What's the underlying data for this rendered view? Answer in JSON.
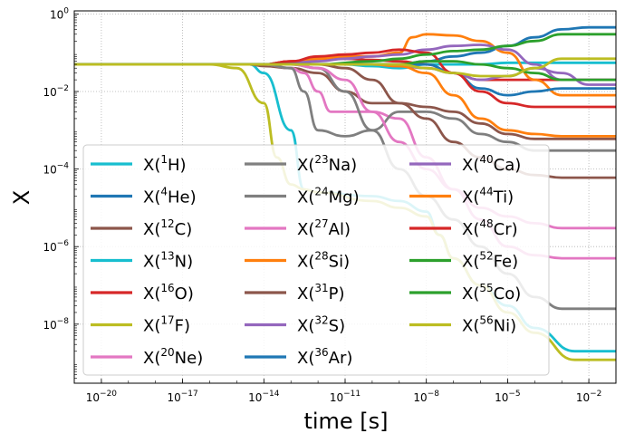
{
  "chart_data": {
    "type": "line",
    "title": "",
    "xlabel": "time [s]",
    "ylabel": "X",
    "xscale": "log",
    "yscale": "log",
    "xlim": [
      1e-21,
      0.1
    ],
    "ylim": [
      3e-10,
      1.2
    ],
    "grid": true,
    "legend_location": "lower-left",
    "legend_columns": 3,
    "xticks": [
      {
        "value": 1e-20,
        "base": "10",
        "exp": "−20"
      },
      {
        "value": 1e-17,
        "base": "10",
        "exp": "−17"
      },
      {
        "value": 1e-14,
        "base": "10",
        "exp": "−14"
      },
      {
        "value": 1e-11,
        "base": "10",
        "exp": "−11"
      },
      {
        "value": 1e-08,
        "base": "10",
        "exp": "−8"
      },
      {
        "value": 1e-05,
        "base": "10",
        "exp": "−5"
      },
      {
        "value": 0.01,
        "base": "10",
        "exp": "−2"
      }
    ],
    "yticks": [
      {
        "value": 1.0,
        "base": "10",
        "exp": "0"
      },
      {
        "value": 0.01,
        "base": "10",
        "exp": "−2"
      },
      {
        "value": 0.0001,
        "base": "10",
        "exp": "−4"
      },
      {
        "value": 1e-06,
        "base": "10",
        "exp": "−6"
      },
      {
        "value": 1e-08,
        "base": "10",
        "exp": "−8"
      }
    ],
    "series": [
      {
        "name": "X(1H)",
        "label_pre": "X(",
        "mass": "1",
        "elem": "H",
        "color": "#17becf",
        "x": [
          1e-21,
          3e-15,
          1e-14,
          1e-13,
          3e-13,
          1e-12,
          1e-10,
          1e-09,
          1e-08,
          3e-08,
          1e-07,
          1e-06,
          1e-05,
          0.0001,
          0.003,
          0.01,
          0.1
        ],
        "y": [
          0.05,
          0.05,
          0.03,
          0.001,
          3e-05,
          2.5e-05,
          2e-05,
          1.5e-05,
          8e-06,
          2e-06,
          5e-07,
          1e-07,
          3e-08,
          8e-09,
          2e-09,
          2e-09,
          2e-09
        ]
      },
      {
        "name": "X(4He)",
        "label_pre": "X(",
        "mass": "4",
        "elem": "He",
        "color": "#1f77b4",
        "x": [
          1e-21,
          3e-15,
          1e-13,
          1e-11,
          1e-09,
          1e-08,
          1e-07,
          1e-06,
          1e-05,
          0.0001,
          0.001,
          0.01,
          0.1
        ],
        "y": [
          0.05,
          0.05,
          0.05,
          0.05,
          0.05,
          0.06,
          0.08,
          0.1,
          0.15,
          0.25,
          0.4,
          0.45,
          0.45
        ]
      },
      {
        "name": "X(12C)",
        "label_pre": "X(",
        "mass": "12",
        "elem": "C",
        "color": "#8c564b",
        "x": [
          1e-21,
          3e-15,
          1e-14,
          1e-13,
          1e-12,
          1e-11,
          1e-10,
          1e-09,
          1e-08,
          1e-07,
          1e-06,
          1e-05,
          0.0001,
          0.001,
          0.01,
          0.1
        ],
        "y": [
          0.05,
          0.05,
          0.045,
          0.04,
          0.03,
          0.01,
          0.005,
          0.005,
          0.004,
          0.003,
          0.0015,
          0.0008,
          0.0006,
          0.0006,
          0.0006,
          0.0006
        ]
      },
      {
        "name": "X(13N)",
        "label_pre": "X(",
        "mass": "13",
        "elem": "N",
        "color": "#17becf",
        "x": [
          1e-21,
          1e-14,
          1e-13,
          1e-12,
          1e-11,
          1e-10,
          1e-09,
          1e-08,
          1e-07,
          1e-06,
          1e-05,
          0.0001,
          0.001,
          0.01,
          0.1
        ],
        "y": [
          0.05,
          0.05,
          0.05,
          0.05,
          0.05,
          0.045,
          0.04,
          0.05,
          0.05,
          0.05,
          0.055,
          0.055,
          0.055,
          0.055,
          0.055
        ]
      },
      {
        "name": "X(16O)",
        "label_pre": "X(",
        "mass": "16",
        "elem": "O",
        "color": "#d62728",
        "x": [
          1e-21,
          1e-14,
          1e-13,
          1e-12,
          1e-11,
          1e-10,
          1e-09,
          1e-08,
          1e-07,
          1e-06,
          1e-05,
          0.0001,
          0.001,
          0.01,
          0.1
        ],
        "y": [
          0.05,
          0.05,
          0.06,
          0.07,
          0.07,
          0.065,
          0.06,
          0.05,
          0.03,
          0.02,
          0.02,
          0.02,
          0.02,
          0.02,
          0.02
        ]
      },
      {
        "name": "X(17F)",
        "label_pre": "X(",
        "mass": "17",
        "elem": "F",
        "color": "#bcbd22",
        "x": [
          1e-21,
          1e-16,
          1e-15,
          1e-14,
          3e-14,
          1e-13,
          3e-13,
          1e-12,
          1e-10,
          1e-09,
          1e-08,
          3e-08,
          1e-07,
          1e-06,
          1e-05,
          0.0001,
          0.003,
          0.1
        ],
        "y": [
          0.05,
          0.05,
          0.04,
          0.005,
          0.0002,
          4e-05,
          3e-05,
          2.5e-05,
          1.5e-05,
          1e-05,
          6e-06,
          2e-06,
          5e-07,
          1e-07,
          2e-08,
          6e-09,
          1.2e-09,
          1.2e-09
        ]
      },
      {
        "name": "X(20Ne)",
        "label_pre": "X(",
        "mass": "20",
        "elem": "Ne",
        "color": "#e377c2",
        "x": [
          1e-21,
          1e-14,
          1e-13,
          3e-13,
          1e-12,
          3e-12,
          1e-11,
          1e-10,
          1e-09,
          1e-08,
          1e-07,
          1e-06,
          1e-05,
          0.0001,
          0.001,
          0.01,
          0.1
        ],
        "y": [
          0.05,
          0.05,
          0.04,
          0.03,
          0.01,
          0.003,
          0.003,
          0.003,
          0.002,
          0.0002,
          3e-05,
          1e-05,
          6e-06,
          4e-06,
          3e-06,
          3e-06,
          3e-06
        ]
      },
      {
        "name": "X(23Na)",
        "label_pre": "X(",
        "mass": "23",
        "elem": "Na",
        "color": "#7f7f7f",
        "x": [
          1e-21,
          1e-14,
          1e-13,
          1e-12,
          1e-11,
          1e-10,
          1e-09,
          1e-08,
          1e-07,
          1e-06,
          1e-05,
          0.0001,
          0.001,
          0.01,
          0.1
        ],
        "y": [
          0.05,
          0.05,
          0.05,
          0.04,
          0.01,
          0.001,
          0.0001,
          2e-05,
          5e-06,
          1e-06,
          2e-07,
          5e-08,
          2.5e-08,
          2.5e-08,
          2.5e-08
        ]
      },
      {
        "name": "X(24Mg)",
        "label_pre": "X(",
        "mass": "24",
        "elem": "Mg",
        "color": "#7f7f7f",
        "x": [
          1e-21,
          1e-14,
          1e-13,
          3e-13,
          1e-12,
          1e-11,
          1e-10,
          1e-09,
          1e-08,
          1e-07,
          1e-06,
          1e-05,
          0.0001,
          0.001,
          0.01,
          0.1
        ],
        "y": [
          0.05,
          0.05,
          0.04,
          0.01,
          0.001,
          0.0007,
          0.001,
          0.003,
          0.003,
          0.002,
          0.0008,
          0.0005,
          0.0003,
          0.0003,
          0.0003,
          0.0003
        ]
      },
      {
        "name": "X(27Al)",
        "label_pre": "X(",
        "mass": "27",
        "elem": "Al",
        "color": "#e377c2",
        "x": [
          1e-21,
          1e-14,
          1e-13,
          1e-12,
          1e-11,
          1e-10,
          1e-09,
          1e-08,
          1e-07,
          1e-06,
          1e-05,
          0.0001,
          0.001,
          0.01,
          0.1
        ],
        "y": [
          0.05,
          0.05,
          0.05,
          0.04,
          0.02,
          0.003,
          0.0005,
          0.0001,
          3e-05,
          5e-06,
          1e-06,
          6e-07,
          5e-07,
          5e-07,
          5e-07
        ]
      },
      {
        "name": "X(28Si)",
        "label_pre": "X(",
        "mass": "28",
        "elem": "Si",
        "color": "#ff7f0e",
        "x": [
          1e-21,
          1e-14,
          1e-13,
          1e-12,
          1e-11,
          1e-10,
          1e-09,
          3e-09,
          1e-08,
          1e-07,
          1e-06,
          1e-05,
          0.0001,
          0.001,
          0.01,
          0.1
        ],
        "y": [
          0.05,
          0.05,
          0.06,
          0.07,
          0.08,
          0.08,
          0.1,
          0.25,
          0.3,
          0.28,
          0.2,
          0.1,
          0.02,
          0.008,
          0.008,
          0.008
        ]
      },
      {
        "name": "X(31P)",
        "label_pre": "X(",
        "mass": "31",
        "elem": "P",
        "color": "#8c564b",
        "x": [
          1e-21,
          1e-14,
          1e-13,
          1e-12,
          1e-11,
          1e-10,
          1e-09,
          1e-08,
          1e-07,
          1e-06,
          1e-05,
          0.0001,
          0.001,
          0.01,
          0.1
        ],
        "y": [
          0.05,
          0.05,
          0.05,
          0.05,
          0.04,
          0.02,
          0.005,
          0.002,
          0.0005,
          0.0002,
          0.0001,
          7e-05,
          6e-05,
          6e-05,
          6e-05
        ]
      },
      {
        "name": "X(32S)",
        "label_pre": "X(",
        "mass": "32",
        "elem": "S",
        "color": "#9467bd",
        "x": [
          1e-21,
          1e-14,
          1e-13,
          1e-12,
          1e-11,
          1e-10,
          1e-09,
          1e-08,
          1e-07,
          1e-06,
          1e-05,
          0.0001,
          0.001,
          0.01,
          0.1
        ],
        "y": [
          0.05,
          0.05,
          0.055,
          0.06,
          0.07,
          0.08,
          0.09,
          0.12,
          0.15,
          0.16,
          0.12,
          0.05,
          0.02,
          0.02,
          0.02
        ]
      },
      {
        "name": "X(36Ar)",
        "label_pre": "X(",
        "mass": "36",
        "elem": "Ar",
        "color": "#1f77b4",
        "x": [
          1e-21,
          1e-14,
          1e-13,
          1e-12,
          1e-11,
          1e-10,
          1e-09,
          1e-08,
          1e-07,
          1e-06,
          1e-05,
          0.0001,
          0.001,
          0.01,
          0.1
        ],
        "y": [
          0.05,
          0.05,
          0.05,
          0.05,
          0.05,
          0.05,
          0.05,
          0.05,
          0.03,
          0.012,
          0.008,
          0.01,
          0.012,
          0.012,
          0.012
        ]
      },
      {
        "name": "X(40Ca)",
        "label_pre": "X(",
        "mass": "40",
        "elem": "Ca",
        "color": "#9467bd",
        "x": [
          1e-21,
          1e-14,
          1e-12,
          1e-10,
          1e-09,
          1e-08,
          1e-07,
          1e-06,
          1e-05,
          0.0001,
          0.001,
          0.01,
          0.1
        ],
        "y": [
          0.05,
          0.05,
          0.05,
          0.05,
          0.045,
          0.04,
          0.03,
          0.02,
          0.025,
          0.04,
          0.03,
          0.015,
          0.015
        ]
      },
      {
        "name": "X(44Ti)",
        "label_pre": "X(",
        "mass": "44",
        "elem": "Ti",
        "color": "#ff7f0e",
        "x": [
          1e-21,
          1e-14,
          1e-12,
          1e-10,
          1e-09,
          1e-08,
          1e-07,
          1e-06,
          1e-05,
          0.0001,
          0.001,
          0.01,
          0.1
        ],
        "y": [
          0.05,
          0.05,
          0.05,
          0.05,
          0.045,
          0.03,
          0.008,
          0.002,
          0.001,
          0.0008,
          0.0007,
          0.0007,
          0.0007
        ]
      },
      {
        "name": "X(48Cr)",
        "label_pre": "X(",
        "mass": "48",
        "elem": "Cr",
        "color": "#d62728",
        "x": [
          1e-21,
          1e-14,
          1e-13,
          1e-12,
          1e-11,
          1e-10,
          1e-09,
          1e-08,
          1e-07,
          1e-06,
          1e-05,
          0.0001,
          0.001,
          0.01,
          0.1
        ],
        "y": [
          0.05,
          0.05,
          0.06,
          0.08,
          0.09,
          0.1,
          0.12,
          0.1,
          0.03,
          0.01,
          0.005,
          0.004,
          0.004,
          0.004,
          0.004
        ]
      },
      {
        "name": "X(52Fe)",
        "label_pre": "X(",
        "mass": "52",
        "elem": "Fe",
        "color": "#2ca02c",
        "x": [
          1e-21,
          1e-14,
          1e-12,
          1e-10,
          1e-09,
          1e-08,
          1e-07,
          1e-06,
          1e-05,
          0.0001,
          0.001,
          0.01,
          0.1
        ],
        "y": [
          0.05,
          0.05,
          0.05,
          0.05,
          0.05,
          0.06,
          0.06,
          0.05,
          0.04,
          0.03,
          0.02,
          0.02,
          0.02
        ]
      },
      {
        "name": "X(55Co)",
        "label_pre": "X(",
        "mass": "55",
        "elem": "Co",
        "color": "#2ca02c",
        "x": [
          1e-21,
          1e-14,
          1e-12,
          1e-10,
          1e-09,
          1e-08,
          1e-07,
          1e-06,
          1e-05,
          0.0001,
          0.001,
          0.01,
          0.1
        ],
        "y": [
          0.05,
          0.05,
          0.05,
          0.06,
          0.07,
          0.09,
          0.11,
          0.12,
          0.15,
          0.2,
          0.3,
          0.3,
          0.3
        ]
      },
      {
        "name": "X(56Ni)",
        "label_pre": "X(",
        "mass": "56",
        "elem": "Ni",
        "color": "#bcbd22",
        "x": [
          1e-21,
          1e-14,
          1e-12,
          1e-10,
          1e-09,
          1e-08,
          1e-07,
          1e-06,
          1e-05,
          0.0001,
          0.001,
          0.01,
          0.1
        ],
        "y": [
          0.05,
          0.05,
          0.05,
          0.05,
          0.05,
          0.04,
          0.03,
          0.025,
          0.025,
          0.04,
          0.07,
          0.07,
          0.07
        ]
      }
    ]
  }
}
